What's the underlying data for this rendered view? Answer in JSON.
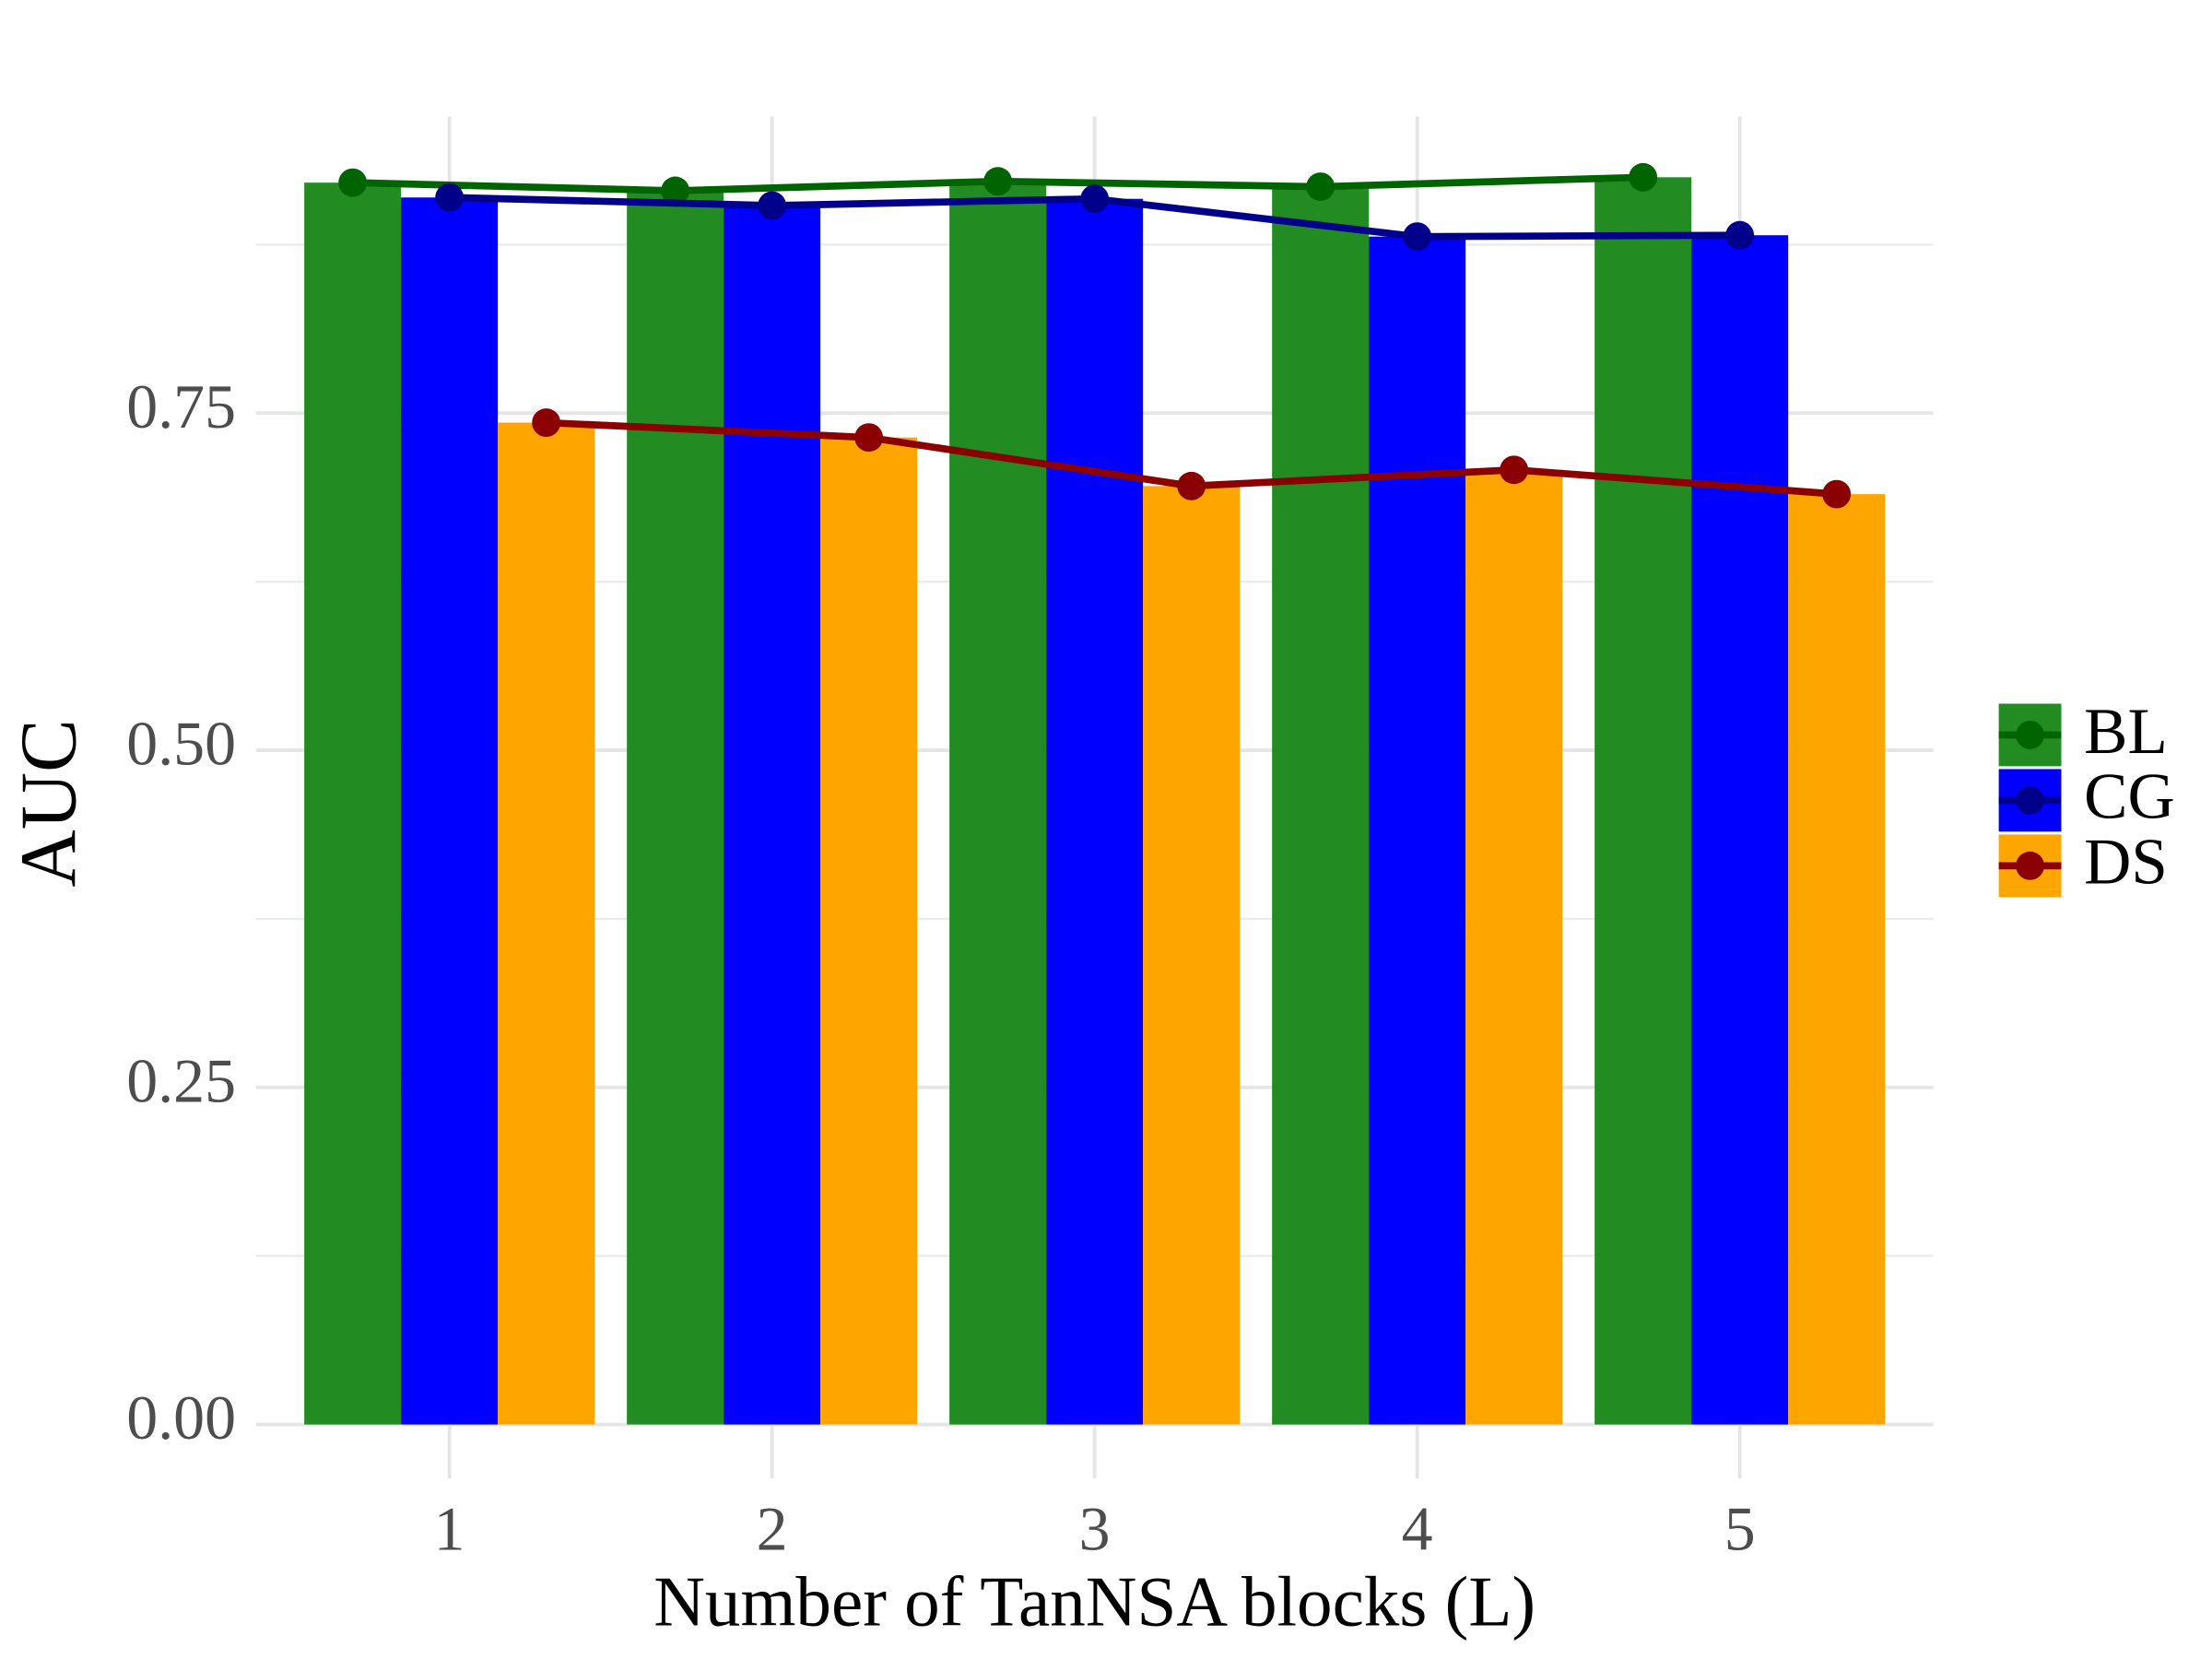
{
  "chart_data": {
    "type": "bar_line",
    "x_label": "Number of TanNSA blocks (L)",
    "y_label": "AUC",
    "x": [
      1,
      2,
      3,
      4,
      5
    ],
    "xlim": [
      0.4,
      5.6
    ],
    "xticks": [
      1,
      2,
      3,
      4,
      5
    ],
    "ylim": [
      -0.04,
      0.97
    ],
    "yticks": [
      {
        "value": 0,
        "label": "0.00"
      },
      0.25,
      {
        "value": 0.5,
        "label": "0.50"
      },
      0.75
    ],
    "minor_yticks": [
      0.125,
      0.375,
      0.625,
      0.875
    ],
    "grid": true,
    "legend": "right",
    "series": [
      {
        "name": "BL",
        "color": "#228b22",
        "line_color": "#006400",
        "values": [
          0.921,
          0.915,
          0.922,
          0.918,
          0.925
        ]
      },
      {
        "name": "CG",
        "color": "#0000ff",
        "line_color": "#00008b",
        "values": [
          0.91,
          0.904,
          0.909,
          0.881,
          0.882
        ]
      },
      {
        "name": "DS",
        "color": "#ffa500",
        "line_color": "#8b0000",
        "values": [
          0.743,
          0.732,
          0.696,
          0.708,
          0.69
        ]
      }
    ]
  }
}
